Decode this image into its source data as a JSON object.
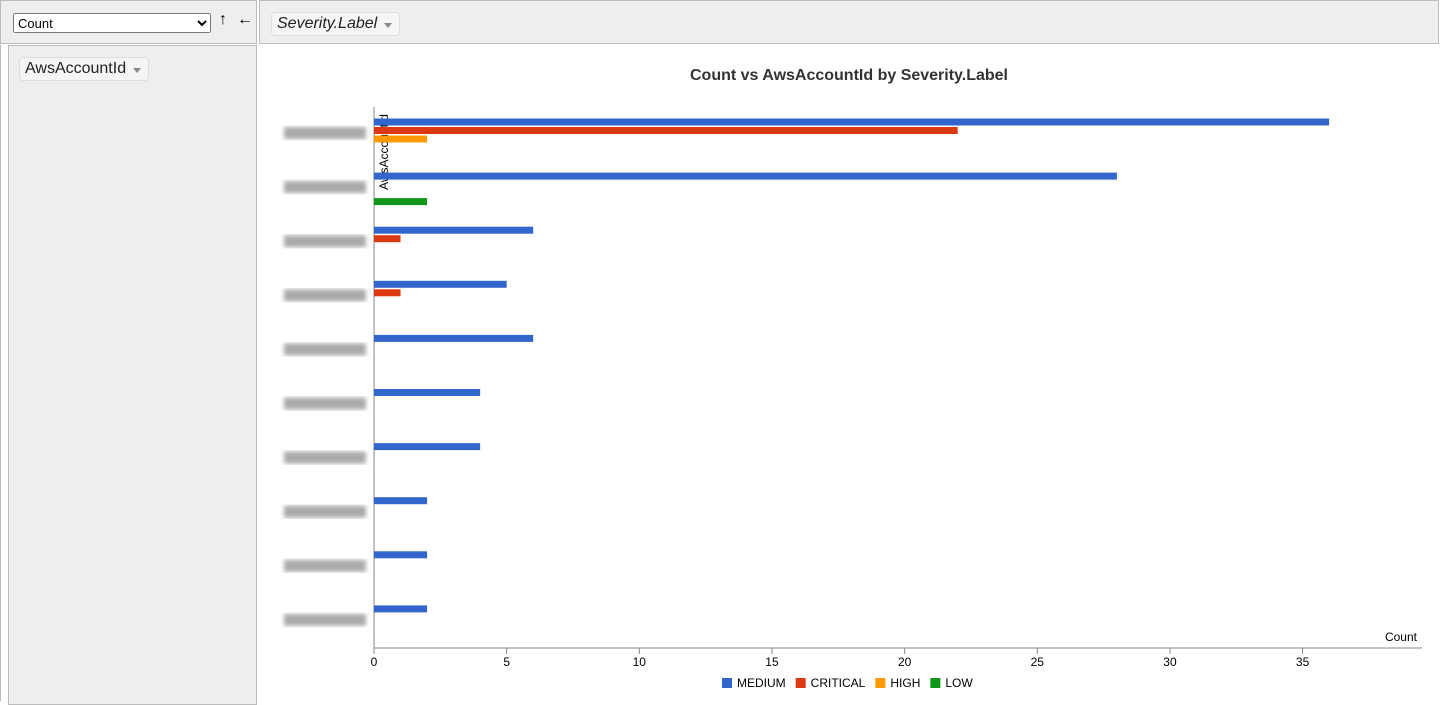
{
  "controls": {
    "aggregator": "Count",
    "sort_arrow": "↑",
    "order_arrow": "←",
    "column_field": "Severity.Label",
    "row_field": "AwsAccountId"
  },
  "chart_data": {
    "type": "bar",
    "orientation": "horizontal",
    "title": "Count vs AwsAccountId by Severity.Label",
    "x_label": "Count",
    "y_label": "AwsAccountId",
    "categories": [
      null,
      null,
      null,
      null,
      null,
      null,
      null,
      null,
      null,
      null
    ],
    "series": [
      {
        "name": "MEDIUM",
        "color": "#3366cc",
        "values": [
          36,
          28,
          6,
          5,
          6,
          4,
          4,
          2,
          2,
          2
        ]
      },
      {
        "name": "CRITICAL",
        "color": "#dc3912",
        "values": [
          22,
          null,
          1,
          1,
          null,
          null,
          null,
          null,
          null,
          null
        ]
      },
      {
        "name": "HIGH",
        "color": "#ff9900",
        "values": [
          2,
          null,
          null,
          null,
          null,
          null,
          null,
          null,
          null,
          null
        ]
      },
      {
        "name": "LOW",
        "color": "#109618",
        "values": [
          null,
          2,
          null,
          null,
          null,
          null,
          null,
          null,
          null,
          null
        ]
      }
    ],
    "xlim": [
      0,
      39.5
    ],
    "xticks": [
      0,
      5,
      10,
      15,
      20,
      25,
      30,
      35
    ],
    "legend": "bottom"
  }
}
